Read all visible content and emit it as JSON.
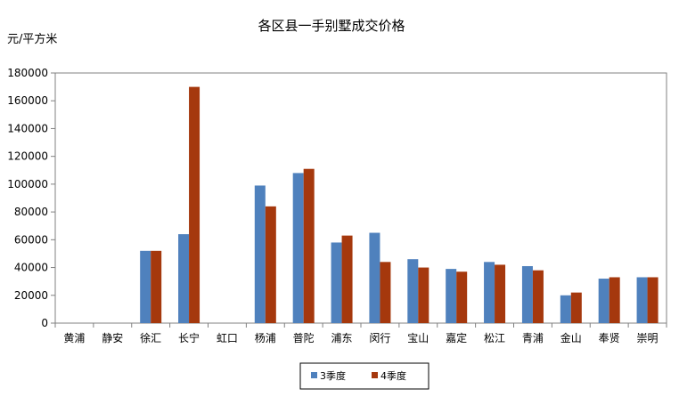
{
  "chart_data": {
    "type": "bar",
    "title": "各区县一手别墅成交价格",
    "ylabel": "元/平方米",
    "xlabel": "",
    "ylim": [
      0,
      180000
    ],
    "yticks": [
      0,
      20000,
      40000,
      60000,
      80000,
      100000,
      120000,
      140000,
      160000,
      180000
    ],
    "categories": [
      "黄浦",
      "静安",
      "徐汇",
      "长宁",
      "虹口",
      "杨浦",
      "普陀",
      "浦东",
      "闵行",
      "宝山",
      "嘉定",
      "松江",
      "青浦",
      "金山",
      "奉贤",
      "崇明"
    ],
    "series": [
      {
        "name": "3季度",
        "color": "#4f81bd",
        "values": [
          0,
          0,
          52000,
          64000,
          0,
          99000,
          108000,
          58000,
          65000,
          46000,
          39000,
          44000,
          41000,
          20000,
          32000,
          33000
        ]
      },
      {
        "name": "4季度",
        "color": "#a5380d",
        "values": [
          0,
          0,
          52000,
          170000,
          0,
          84000,
          111000,
          63000,
          44000,
          40000,
          37000,
          42000,
          38000,
          22000,
          33000,
          33000
        ]
      }
    ],
    "legend_position": "bottom-center",
    "grid": false
  }
}
